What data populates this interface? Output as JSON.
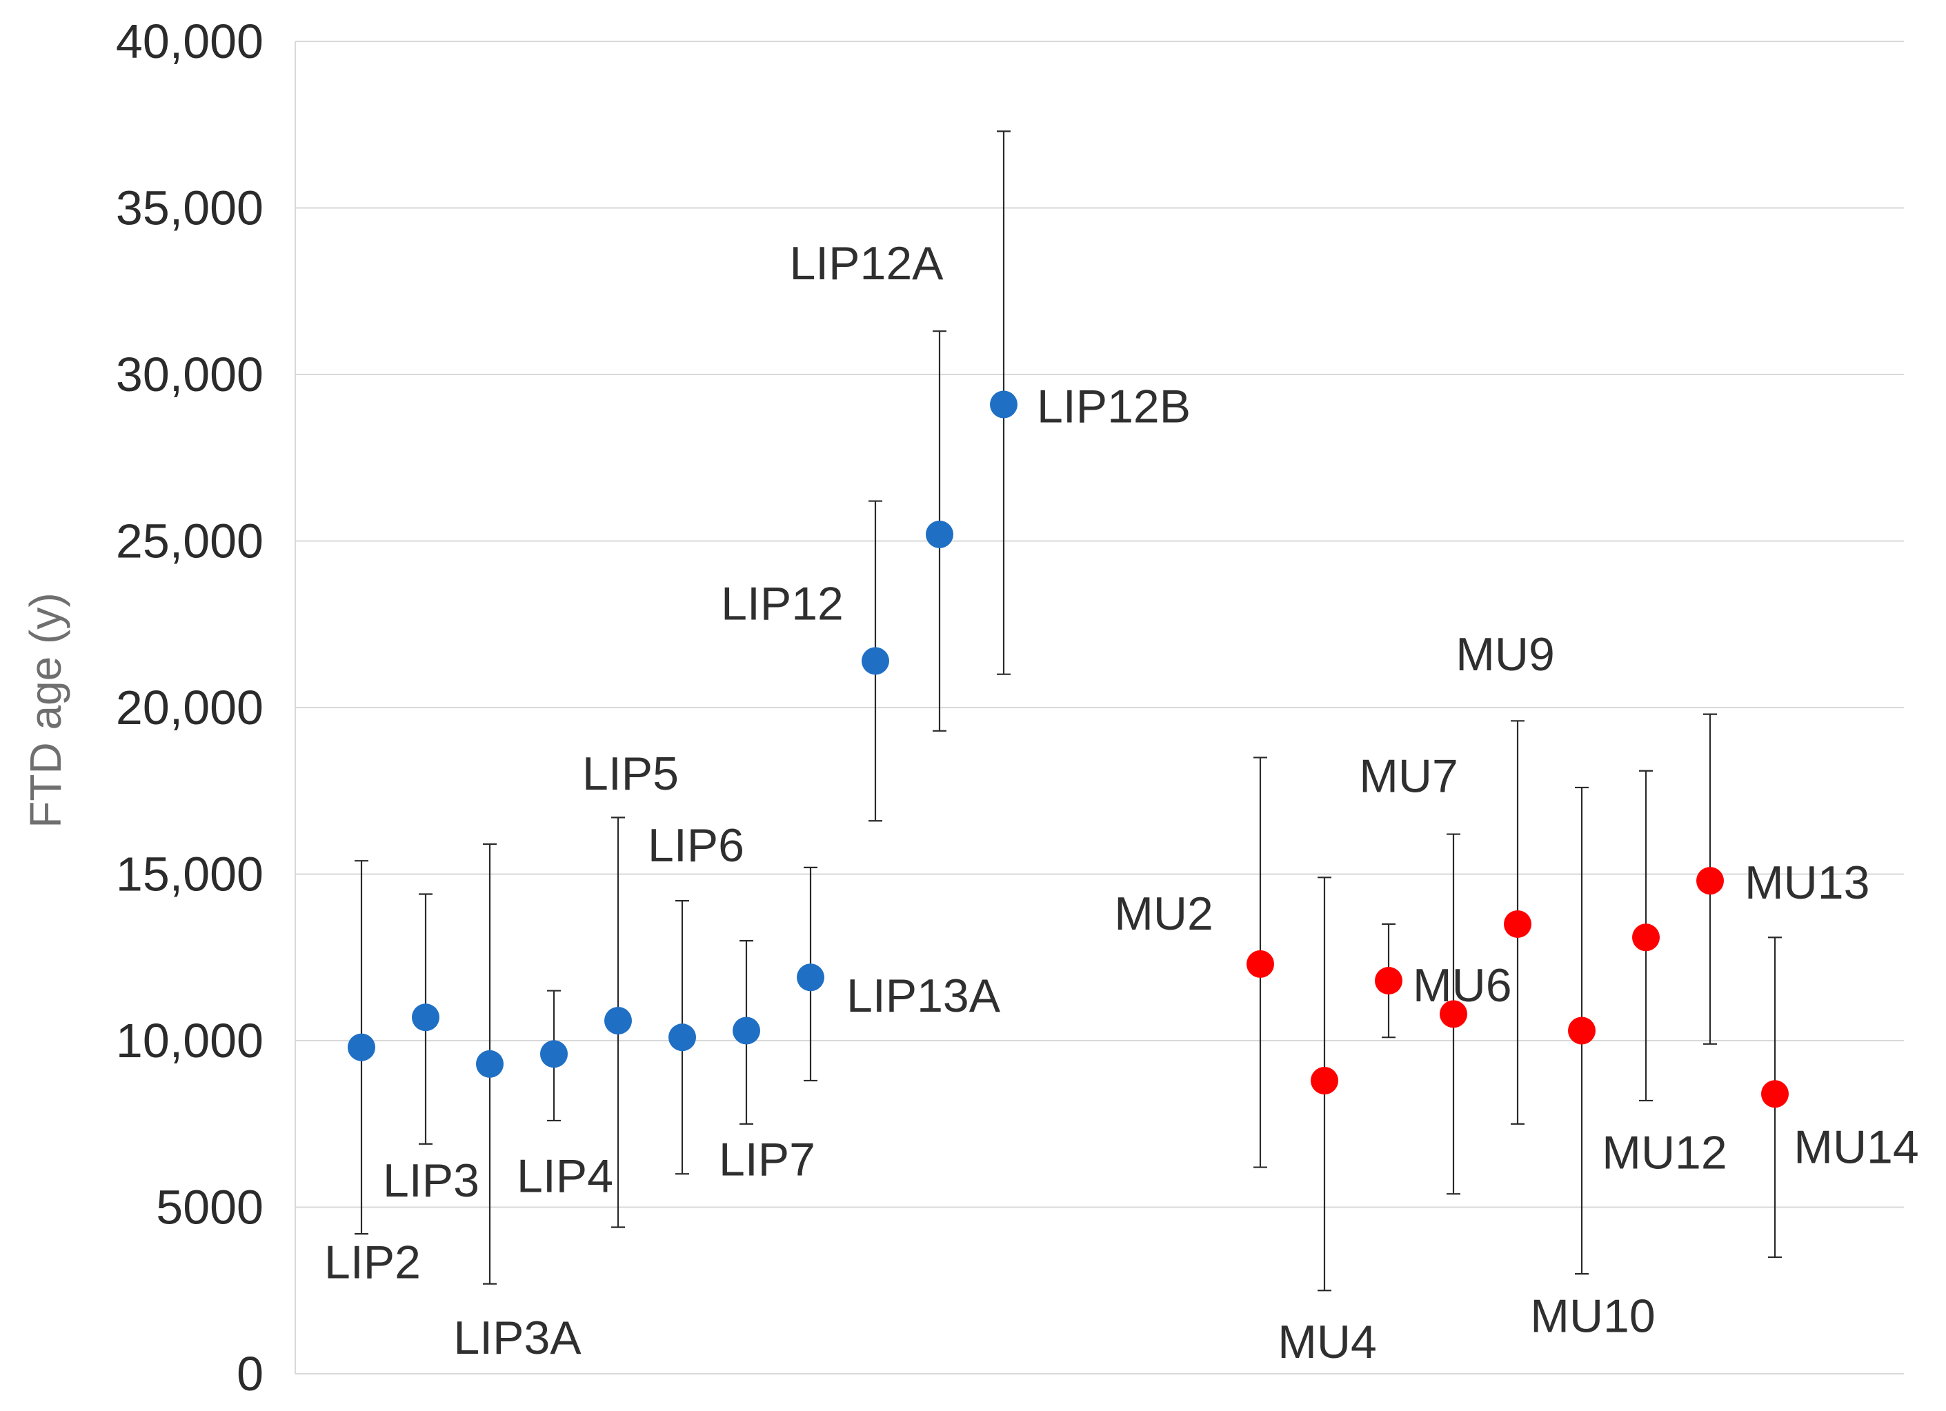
{
  "chart_data": {
    "type": "scatter",
    "title": "",
    "xlabel": "",
    "ylabel": "FTD age (y)",
    "ylim": [
      0,
      40000
    ],
    "y_ticks": [
      0,
      5000,
      10000,
      15000,
      20000,
      25000,
      30000,
      35000,
      40000
    ],
    "y_tick_labels": [
      "0",
      "5000",
      "10,000",
      "15,000",
      "20,000",
      "25,000",
      "30,000",
      "35,000",
      "40,000"
    ],
    "grid": true,
    "legend": "none",
    "series": [
      {
        "name": "LIP",
        "color": "#1f6fc5",
        "points": [
          {
            "label": "LIP2",
            "x": 1,
            "y": 9800,
            "err_low": 4200,
            "err_high": 15400
          },
          {
            "label": "LIP3",
            "x": 2,
            "y": 10700,
            "err_low": 6900,
            "err_high": 14400
          },
          {
            "label": "LIP3A",
            "x": 3,
            "y": 9300,
            "err_low": 2700,
            "err_high": 15900
          },
          {
            "label": "LIP4",
            "x": 4,
            "y": 9600,
            "err_low": 7600,
            "err_high": 11500
          },
          {
            "label": "LIP5",
            "x": 5,
            "y": 10600,
            "err_low": 4400,
            "err_high": 16700
          },
          {
            "label": "LIP6",
            "x": 6,
            "y": 10100,
            "err_low": 6000,
            "err_high": 14200
          },
          {
            "label": "LIP7",
            "x": 7,
            "y": 10300,
            "err_low": 7500,
            "err_high": 13000
          },
          {
            "label": "LIP13A",
            "x": 8,
            "y": 11900,
            "err_low": 8800,
            "err_high": 15200
          },
          {
            "label": "LIP12",
            "x": 9,
            "y": 21400,
            "err_low": 16600,
            "err_high": 26200
          },
          {
            "label": "LIP12A",
            "x": 10,
            "y": 25200,
            "err_low": 19300,
            "err_high": 31300
          },
          {
            "label": "LIP12B",
            "x": 11,
            "y": 29100,
            "err_low": 21000,
            "err_high": 37300
          }
        ]
      },
      {
        "name": "MU",
        "color": "#ff0000",
        "points": [
          {
            "label": "MU2",
            "x": 15,
            "y": 12300,
            "err_low": 6200,
            "err_high": 18500
          },
          {
            "label": "MU4",
            "x": 16,
            "y": 8800,
            "err_low": 2500,
            "err_high": 14900
          },
          {
            "label": "MU6",
            "x": 17,
            "y": 11800,
            "err_low": 10100,
            "err_high": 13500
          },
          {
            "label": "MU7",
            "x": 18,
            "y": 10800,
            "err_low": 5400,
            "err_high": 16200
          },
          {
            "label": "MU9",
            "x": 19,
            "y": 13500,
            "err_low": 7500,
            "err_high": 19600
          },
          {
            "label": "MU10",
            "x": 20,
            "y": 10300,
            "err_low": 3000,
            "err_high": 17600
          },
          {
            "label": "MU12",
            "x": 21,
            "y": 13100,
            "err_low": 8200,
            "err_high": 18100
          },
          {
            "label": "MU13",
            "x": 22,
            "y": 14800,
            "err_low": 9900,
            "err_high": 19800
          },
          {
            "label": "MU14",
            "x": 23,
            "y": 8400,
            "err_low": 3500,
            "err_high": 13100
          }
        ]
      }
    ]
  }
}
